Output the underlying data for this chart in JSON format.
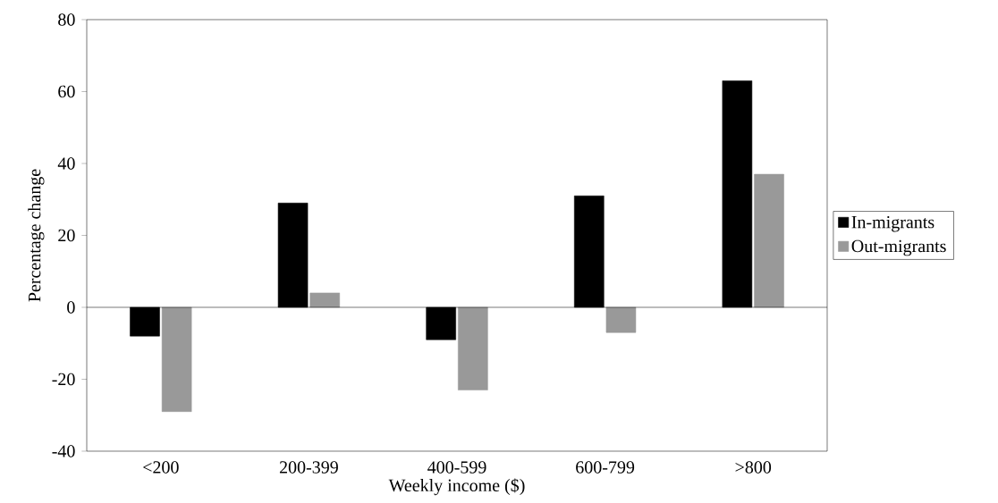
{
  "chart_data": {
    "type": "bar",
    "xlabel": "Weekly income ($)",
    "ylabel": "Percentage change",
    "categories": [
      "<200",
      "200-399",
      "400-599",
      "600-799",
      ">800"
    ],
    "series": [
      {
        "name": "In-migrants",
        "color": "#000000",
        "values": [
          -8,
          29,
          -9,
          31,
          63
        ]
      },
      {
        "name": "Out-migrants",
        "color": "#999999",
        "values": [
          -29,
          4,
          -23,
          -7,
          37
        ]
      }
    ],
    "ylim": [
      -40,
      80
    ],
    "yticks": [
      -40,
      -20,
      0,
      20,
      40,
      60,
      80
    ],
    "ref_lines": [
      {
        "axis": "y",
        "value": 0,
        "color": "#000000"
      }
    ],
    "legend": "right"
  }
}
